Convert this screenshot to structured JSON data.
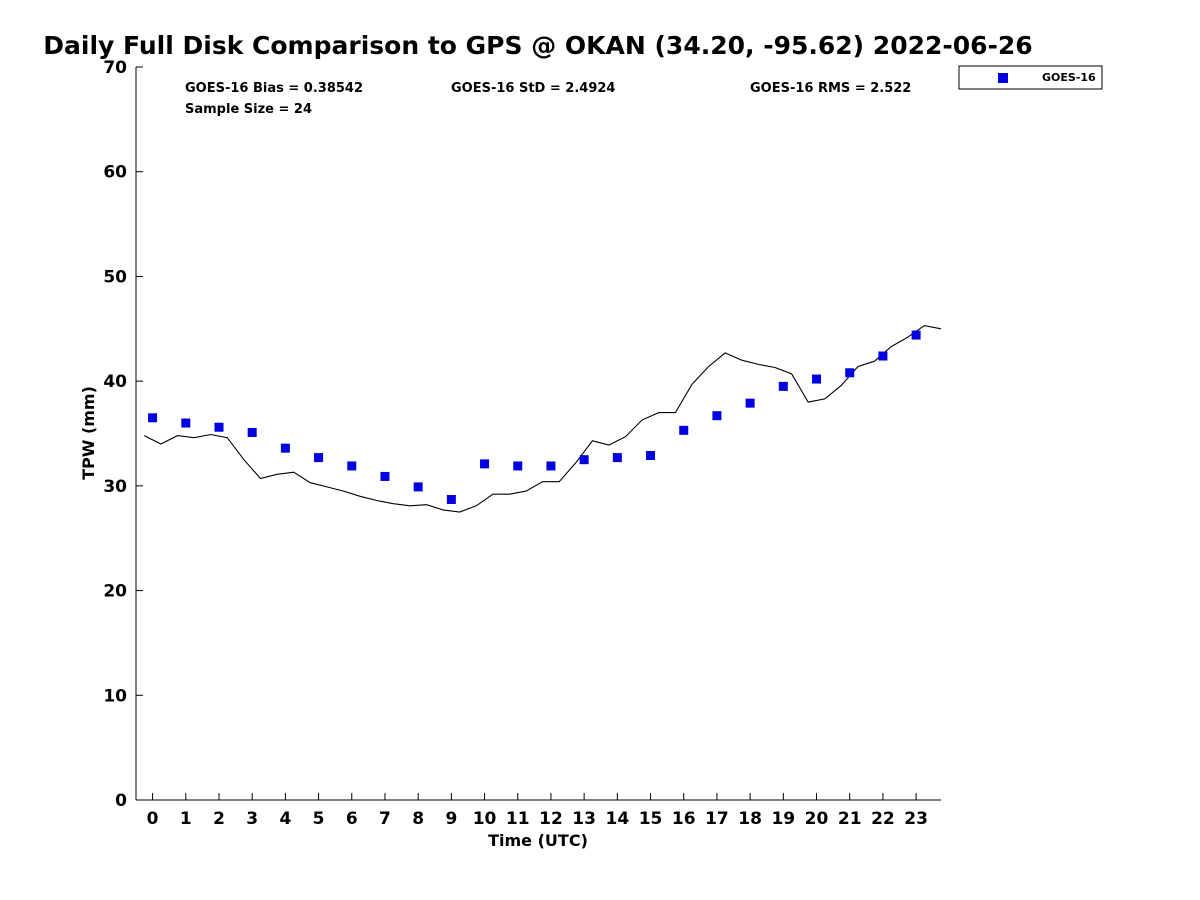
{
  "chart_data": {
    "type": "scatter",
    "title": "Daily Full Disk Comparison to GPS @ OKAN (34.20, -95.62) 2022-06-26",
    "xlabel": "Time (UTC)",
    "ylabel": "TPW (mm)",
    "xlim": [
      -0.5,
      23.75
    ],
    "ylim": [
      0,
      70
    ],
    "xticks": [
      "0",
      "1",
      "2",
      "3",
      "4",
      "5",
      "6",
      "7",
      "8",
      "9",
      "10",
      "11",
      "12",
      "13",
      "14",
      "15",
      "16",
      "17",
      "18",
      "19",
      "20",
      "21",
      "22",
      "23"
    ],
    "yticks": [
      "0",
      "10",
      "20",
      "30",
      "40",
      "50",
      "60",
      "70"
    ],
    "grid": false,
    "legend_position": "top-right (outside plot)",
    "stats": {
      "bias": "GOES-16 Bias = 0.38542",
      "std": "GOES-16 StD = 2.4924",
      "rms": "GOES-16 RMS = 2.522",
      "sample": "Sample Size = 24"
    },
    "series": [
      {
        "name": "GOES-16",
        "kind": "scatter",
        "marker": "square",
        "color": "#0000e0",
        "x": [
          0,
          1,
          2,
          3,
          4,
          5,
          6,
          7,
          8,
          9,
          10,
          11,
          12,
          13,
          14,
          15,
          16,
          17,
          18,
          19,
          20,
          21,
          22,
          23
        ],
        "y": [
          36.5,
          36.0,
          35.6,
          35.1,
          33.6,
          32.7,
          31.9,
          30.9,
          29.9,
          28.7,
          32.1,
          31.9,
          31.9,
          32.5,
          32.7,
          32.9,
          35.3,
          36.7,
          37.9,
          39.5,
          40.2,
          40.8,
          42.4,
          44.4
        ]
      },
      {
        "kind": "line",
        "color": "#000000",
        "x": [
          -0.25,
          0.25,
          0.75,
          1.25,
          1.75,
          2.25,
          2.75,
          3.25,
          3.75,
          4.25,
          4.75,
          5.25,
          5.75,
          6.25,
          6.75,
          7.25,
          7.75,
          8.25,
          8.75,
          9.25,
          9.75,
          10.25,
          10.75,
          11.25,
          11.75,
          12.25,
          12.75,
          13.25,
          13.75,
          14.25,
          14.75,
          15.25,
          15.75,
          16.25,
          16.75,
          17.25,
          17.75,
          18.25,
          18.75,
          19.25,
          19.75,
          20.25,
          20.75,
          21.25,
          21.75,
          22.25,
          22.75,
          23.25,
          23.75
        ],
        "y": [
          34.8,
          34.0,
          34.8,
          34.6,
          34.9,
          34.6,
          32.5,
          30.7,
          31.1,
          31.3,
          30.3,
          29.9,
          29.5,
          29.0,
          28.6,
          28.3,
          28.1,
          28.2,
          27.7,
          27.5,
          28.1,
          29.2,
          29.2,
          29.5,
          30.4,
          30.4,
          32.2,
          34.3,
          33.9,
          34.7,
          36.3,
          37.0,
          37.0,
          39.7,
          41.4,
          42.7,
          42.0,
          41.6,
          41.3,
          40.7,
          38.0,
          38.3,
          39.6,
          41.4,
          41.9,
          43.3,
          44.2,
          45.3,
          45.0
        ]
      }
    ]
  }
}
